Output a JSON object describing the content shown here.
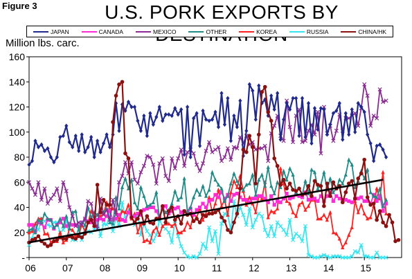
{
  "figure_label": "Figure 3",
  "title": "U.S. PORK EXPORTS BY DESTINATION",
  "ylabel": "Million lbs. carc.",
  "colors": {
    "JAPAN": "#1f2a8c",
    "CANADA": "#ff2bd6",
    "MEXICO": "#8a2a92",
    "OTHER": "#1f8a86",
    "KOREA": "#ff2020",
    "RUSSIA": "#34e6f0",
    "CHINA/HK": "#8b1010",
    "TREND": "#000000"
  },
  "chart_data": {
    "type": "line",
    "title": "U.S. PORK EXPORTS BY DESTINATION",
    "xlabel": "",
    "ylabel": "Million lbs. carc.",
    "xlim": [
      2006,
      2016
    ],
    "ylim": [
      0,
      160
    ],
    "x_ticks": [
      "06",
      "07",
      "08",
      "09",
      "10",
      "11",
      "12",
      "13",
      "14",
      "15"
    ],
    "y_ticks": [
      "-",
      "20",
      "40",
      "60",
      "80",
      "100",
      "120",
      "140",
      "160"
    ],
    "grid": false,
    "legend_position": "top",
    "x_start": 2006,
    "x_step_months": 1,
    "series": [
      {
        "name": "JAPAN",
        "marker": "diamond",
        "values": [
          74,
          77,
          93,
          88,
          90,
          85,
          87,
          80,
          76,
          80,
          96,
          97,
          105,
          92,
          88,
          97,
          85,
          98,
          84,
          88,
          96,
          80,
          93,
          84,
          91,
          98,
          88,
          98,
          123,
          101,
          122,
          117,
          124,
          120,
          120,
          109,
          101,
          113,
          97,
          115,
          106,
          112,
          120,
          109,
          114,
          114,
          113,
          119,
          114,
          118,
          82,
          120,
          80,
          111,
          115,
          89,
          117,
          110,
          109,
          110,
          116,
          104,
          131,
          106,
          127,
          93,
          113,
          104,
          125,
          81,
          101,
          138,
          133,
          110,
          137,
          123,
          126,
          113,
          129,
          118,
          131,
          94,
          110,
          123,
          118,
          127,
          127,
          97,
          127,
          96,
          123,
          91,
          119,
          102,
          119,
          118,
          98,
          106,
          115,
          117,
          123,
          94,
          115,
          98,
          118,
          100,
          123,
          120,
          116,
          98,
          91,
          77,
          89,
          90,
          86,
          80
        ]
      },
      {
        "name": "MEXICO",
        "marker": "x",
        "values": [
          60,
          55,
          50,
          60,
          46,
          55,
          43,
          47,
          50,
          55,
          45,
          60,
          53,
          40,
          33,
          25,
          28,
          26,
          31,
          45,
          43,
          31,
          23,
          47,
          34,
          38,
          30,
          46,
          34,
          60,
          65,
          76,
          67,
          76,
          62,
          59,
          68,
          73,
          81,
          80,
          74,
          59,
          75,
          79,
          65,
          61,
          79,
          71,
          79,
          86,
          73,
          84,
          86,
          83,
          74,
          69,
          75,
          85,
          92,
          84,
          86,
          88,
          77,
          80,
          87,
          78,
          88,
          87,
          96,
          91,
          97,
          90,
          92,
          86,
          87,
          87,
          89,
          77,
          99,
          105,
          113,
          97,
          93,
          125,
          104,
          92,
          113,
          118,
          92,
          93,
          101,
          106,
          98,
          116,
          83,
          120,
          99,
          105,
          93,
          101,
          114,
          101,
          111,
          111,
          113,
          115,
          105,
          119,
          138,
          129,
          105,
          113,
          111,
          134,
          124,
          125
        ]
      },
      {
        "name": "OTHER",
        "marker": "triangle",
        "values": [
          22,
          23,
          20,
          30,
          28,
          35,
          31,
          30,
          24,
          26,
          31,
          25,
          33,
          23,
          36,
          37,
          22,
          28,
          26,
          40,
          32,
          36,
          34,
          37,
          36,
          39,
          28,
          27,
          48,
          39,
          56,
          63,
          55,
          62,
          44,
          39,
          56,
          49,
          41,
          42,
          44,
          52,
          31,
          39,
          36,
          38,
          43,
          53,
          46,
          48,
          63,
          37,
          40,
          48,
          54,
          50,
          57,
          49,
          54,
          68,
          62,
          58,
          55,
          45,
          49,
          59,
          67,
          61,
          56,
          54,
          58,
          59,
          66,
          50,
          62,
          66,
          57,
          72,
          57,
          51,
          60,
          56,
          69,
          62,
          71,
          66,
          52,
          55,
          50,
          61,
          51,
          70,
          68,
          55,
          58,
          68,
          54,
          63,
          52,
          55,
          62,
          59,
          66,
          78,
          74,
          56,
          61,
          69,
          63,
          70,
          52,
          49,
          48,
          55,
          41,
          46
        ]
      },
      {
        "name": "CANADA",
        "marker": "square",
        "values": [
          26,
          26,
          21,
          28,
          27,
          24,
          30,
          30,
          23,
          26,
          28,
          31,
          25,
          27,
          26,
          26,
          25,
          28,
          30,
          29,
          28,
          29,
          30,
          31,
          30,
          33,
          37,
          30,
          31,
          34,
          30,
          29,
          36,
          32,
          33,
          35,
          34,
          38,
          39,
          40,
          40,
          37,
          32,
          39,
          41,
          35,
          37,
          39,
          40,
          36,
          37,
          35,
          39,
          34,
          38,
          40,
          43,
          40,
          45,
          46,
          50,
          48,
          52,
          47,
          50,
          45,
          50,
          51,
          48,
          46,
          46,
          44,
          47,
          47,
          49,
          49,
          47,
          44,
          49,
          42,
          45,
          44,
          47,
          51,
          47,
          48,
          50,
          49,
          48,
          52,
          46,
          47,
          47,
          45,
          49,
          45,
          49,
          52,
          45,
          49,
          47,
          46,
          46,
          45,
          44,
          47,
          47,
          48,
          45,
          45,
          43,
          50,
          45,
          49,
          37,
          43
        ]
      },
      {
        "name": "KOREA",
        "marker": "triangle",
        "values": [
          20,
          21,
          27,
          31,
          31,
          19,
          19,
          12,
          14,
          13,
          20,
          12,
          14,
          23,
          22,
          18,
          18,
          26,
          21,
          28,
          37,
          31,
          34,
          33,
          35,
          44,
          39,
          39,
          38,
          30,
          37,
          36,
          42,
          31,
          35,
          20,
          27,
          13,
          14,
          12,
          21,
          24,
          18,
          25,
          27,
          27,
          25,
          27,
          20,
          20,
          22,
          28,
          24,
          35,
          32,
          39,
          30,
          35,
          48,
          36,
          43,
          54,
          41,
          46,
          34,
          52,
          61,
          56,
          65,
          53,
          42,
          48,
          43,
          36,
          49,
          47,
          60,
          32,
          37,
          36,
          39,
          71,
          59,
          45,
          43,
          36,
          33,
          42,
          44,
          38,
          41,
          46,
          46,
          31,
          31,
          34,
          30,
          36,
          20,
          19,
          15,
          8,
          12,
          18,
          24,
          45,
          36,
          42,
          35,
          31,
          32,
          41,
          55,
          47,
          68,
          35
        ]
      },
      {
        "name": "RUSSIA",
        "marker": "x",
        "values": [
          10,
          15,
          25,
          22,
          31,
          29,
          26,
          25,
          28,
          28,
          20,
          22,
          30,
          18,
          14,
          14,
          25,
          14,
          24,
          21,
          20,
          22,
          31,
          17,
          27,
          26,
          35,
          21,
          32,
          25,
          44,
          31,
          38,
          33,
          26,
          35,
          18,
          27,
          21,
          18,
          13,
          18,
          30,
          25,
          23,
          20,
          12,
          29,
          17,
          9,
          4,
          1,
          0,
          1,
          0,
          3,
          11,
          7,
          24,
          13,
          21,
          3,
          27,
          35,
          34,
          22,
          45,
          33,
          40,
          34,
          26,
          39,
          24,
          30,
          35,
          33,
          22,
          17,
          25,
          17,
          28,
          25,
          22,
          18,
          30,
          14,
          19,
          17,
          13,
          25,
          2,
          1,
          0,
          0,
          1,
          2,
          1,
          0,
          1,
          1,
          1,
          0,
          0,
          0,
          1,
          5,
          4,
          10,
          1,
          1,
          0,
          0,
          4,
          0,
          0,
          0
        ]
      },
      {
        "name": "CHINA/HK",
        "marker": "circle",
        "values": [
          12,
          14,
          15,
          17,
          13,
          11,
          9,
          10,
          13,
          14,
          16,
          15,
          15,
          17,
          16,
          15,
          17,
          16,
          19,
          28,
          30,
          25,
          58,
          36,
          46,
          42,
          42,
          108,
          129,
          138,
          140,
          83,
          79,
          32,
          28,
          31,
          37,
          27,
          33,
          28,
          27,
          31,
          31,
          41,
          28,
          37,
          40,
          30,
          33,
          27,
          37,
          34,
          35,
          29,
          31,
          28,
          34,
          33,
          35,
          35,
          36,
          38,
          32,
          29,
          22,
          20,
          28,
          35,
          55,
          86,
          84,
          97,
          88,
          59,
          98,
          132,
          136,
          116,
          109,
          79,
          73,
          58,
          62,
          55,
          59,
          54,
          53,
          55,
          50,
          51,
          57,
          49,
          61,
          58,
          57,
          41,
          59,
          49,
          60,
          55,
          57,
          44,
          52,
          59,
          61,
          47,
          63,
          67,
          78,
          48,
          42,
          43,
          30,
          37,
          28,
          25,
          34,
          28,
          13,
          14
        ]
      }
    ],
    "trend": {
      "name": "",
      "x": [
        2006.0,
        2015.5
      ],
      "y": [
        12,
        62
      ]
    }
  }
}
